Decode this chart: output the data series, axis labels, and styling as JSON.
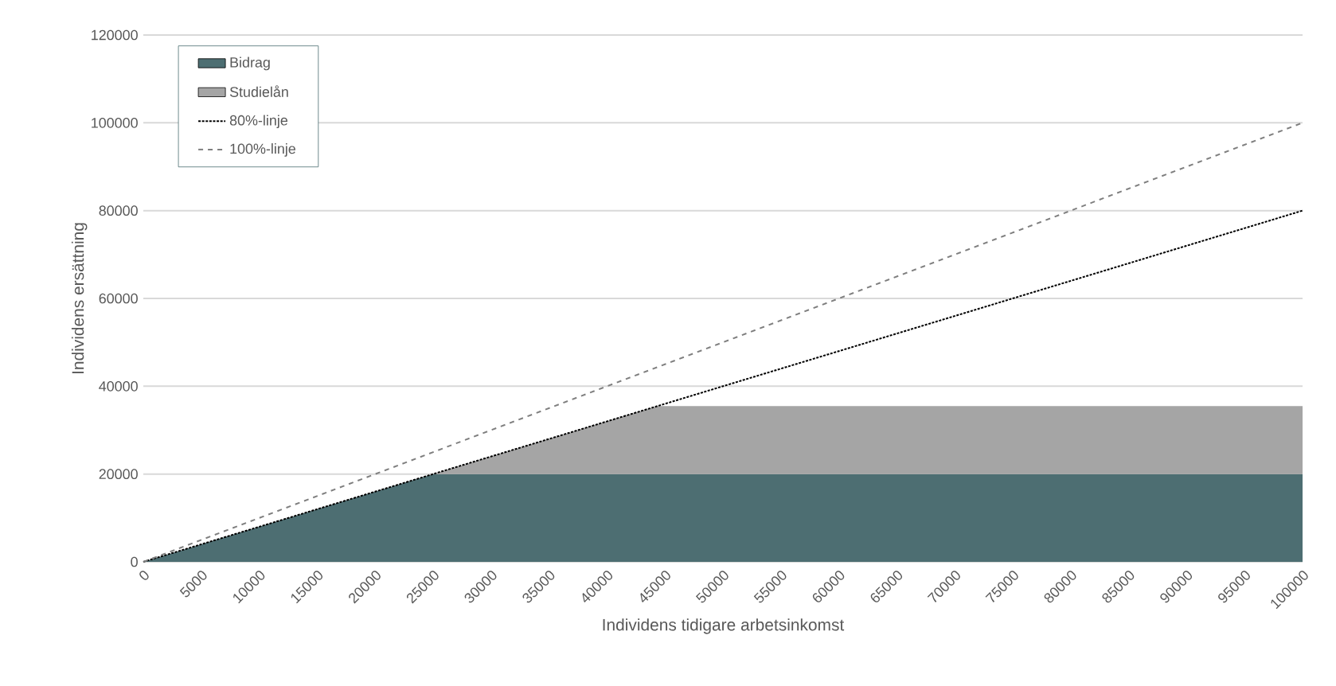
{
  "chart_data": {
    "type": "area",
    "stacked": true,
    "xlabel": "Individens tidigare arbetsinkomst",
    "ylabel": "Individens ersättning",
    "xlim": [
      0,
      100000
    ],
    "ylim": [
      0,
      120000
    ],
    "xticks": [
      0,
      5000,
      10000,
      15000,
      20000,
      25000,
      30000,
      35000,
      40000,
      45000,
      50000,
      55000,
      60000,
      65000,
      70000,
      75000,
      80000,
      85000,
      90000,
      95000,
      100000
    ],
    "yticks": [
      0,
      20000,
      40000,
      60000,
      80000,
      100000,
      120000
    ],
    "grid": "y",
    "legend": "top left",
    "series": [
      {
        "name": "Bidrag",
        "color": "#4d6e72",
        "x": [
          0,
          25000,
          44375,
          100000
        ],
        "values": [
          0,
          20000,
          20000,
          20000
        ]
      },
      {
        "name": "Studielån",
        "color": "#a5a5a5",
        "x": [
          0,
          25000,
          44375,
          100000
        ],
        "values": [
          0,
          0,
          15500,
          15500
        ]
      },
      {
        "name": "80%-linje",
        "type": "line",
        "line_style": "dotted",
        "color": "#000000",
        "x": [
          0,
          100000
        ],
        "values": [
          0,
          80000
        ]
      },
      {
        "name": "100%-linje",
        "type": "line",
        "line_style": "dashed",
        "color": "#7f7f7f",
        "x": [
          0,
          100000
        ],
        "values": [
          0,
          100000
        ]
      }
    ]
  }
}
